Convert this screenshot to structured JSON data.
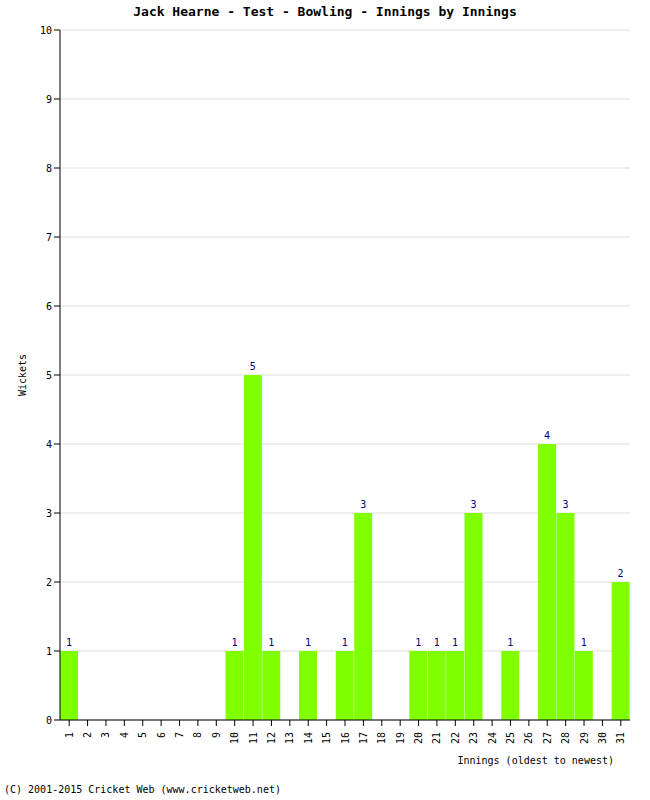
{
  "chart_data": {
    "type": "bar",
    "title": "Jack Hearne - Test - Bowling - Innings by Innings",
    "x_label": "Innings (oldest to newest)",
    "y_label": "Wickets",
    "footer": "(C) 2001-2015 Cricket Web (www.cricketweb.net)",
    "categories": [
      1,
      2,
      3,
      4,
      5,
      6,
      7,
      8,
      9,
      10,
      11,
      12,
      13,
      14,
      15,
      16,
      17,
      18,
      19,
      20,
      21,
      22,
      23,
      24,
      25,
      26,
      27,
      28,
      29,
      30,
      31
    ],
    "values": [
      1,
      0,
      0,
      0,
      0,
      0,
      0,
      0,
      0,
      1,
      5,
      1,
      0,
      1,
      0,
      1,
      3,
      0,
      0,
      1,
      1,
      1,
      3,
      0,
      1,
      0,
      4,
      3,
      1,
      0,
      2
    ],
    "color": "#80ff00",
    "ylim": [
      0,
      10
    ],
    "yticks": [
      0,
      1,
      2,
      3,
      4,
      5,
      6,
      7,
      8,
      9,
      10
    ],
    "grid": true,
    "data_labels": true
  }
}
